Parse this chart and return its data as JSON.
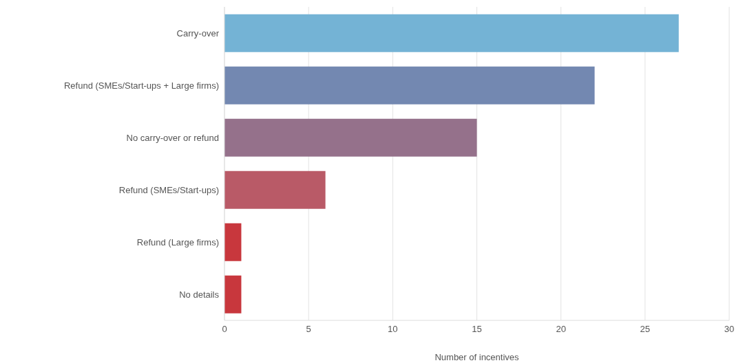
{
  "chart_data": {
    "type": "bar",
    "orientation": "horizontal",
    "xlabel": "Number of incentives",
    "categories": [
      "Carry-over",
      "Refund (SMEs/Start-ups + Large firms)",
      "No carry-over or refund",
      "Refund (SMEs/Start-ups)",
      "Refund (Large firms)",
      "No details"
    ],
    "values": [
      27,
      22,
      15,
      6,
      1,
      1
    ],
    "colors": [
      "#74b3d5",
      "#7388b1",
      "#95718b",
      "#b95a67",
      "#c8373d",
      "#c8373d"
    ],
    "xlim": [
      0,
      30
    ],
    "xticks": [
      0,
      5,
      10,
      15,
      20,
      25,
      30
    ],
    "grid": "x",
    "legend": false
  }
}
